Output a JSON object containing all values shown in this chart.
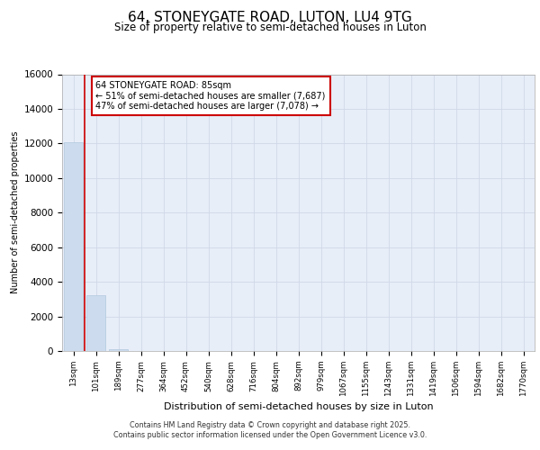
{
  "title_line1": "64, STONEYGATE ROAD, LUTON, LU4 9TG",
  "title_line2": "Size of property relative to semi-detached houses in Luton",
  "xlabel": "Distribution of semi-detached houses by size in Luton",
  "ylabel": "Number of semi-detached properties",
  "categories": [
    "13sqm",
    "101sqm",
    "189sqm",
    "277sqm",
    "364sqm",
    "452sqm",
    "540sqm",
    "628sqm",
    "716sqm",
    "804sqm",
    "892sqm",
    "979sqm",
    "1067sqm",
    "1155sqm",
    "1243sqm",
    "1331sqm",
    "1419sqm",
    "1506sqm",
    "1594sqm",
    "1682sqm",
    "1770sqm"
  ],
  "values": [
    12050,
    3250,
    100,
    0,
    0,
    0,
    0,
    0,
    0,
    0,
    0,
    0,
    0,
    0,
    0,
    0,
    0,
    0,
    0,
    0,
    0
  ],
  "bar_color": "#ccdcee",
  "bar_edge_color": "#b0c8de",
  "annotation_text_line1": "64 STONEYGATE ROAD: 85sqm",
  "annotation_text_line2": "← 51% of semi-detached houses are smaller (7,687)",
  "annotation_text_line3": "47% of semi-detached houses are larger (7,078) →",
  "annotation_box_color": "#ffffff",
  "annotation_box_edge": "#cc0000",
  "red_line_color": "#cc0000",
  "ylim": [
    0,
    16000
  ],
  "yticks": [
    0,
    2000,
    4000,
    6000,
    8000,
    10000,
    12000,
    14000,
    16000
  ],
  "grid_color": "#d0d8e8",
  "bg_color": "#e8eef8",
  "footnote1": "Contains HM Land Registry data © Crown copyright and database right 2025.",
  "footnote2": "Contains public sector information licensed under the Open Government Licence v3.0."
}
